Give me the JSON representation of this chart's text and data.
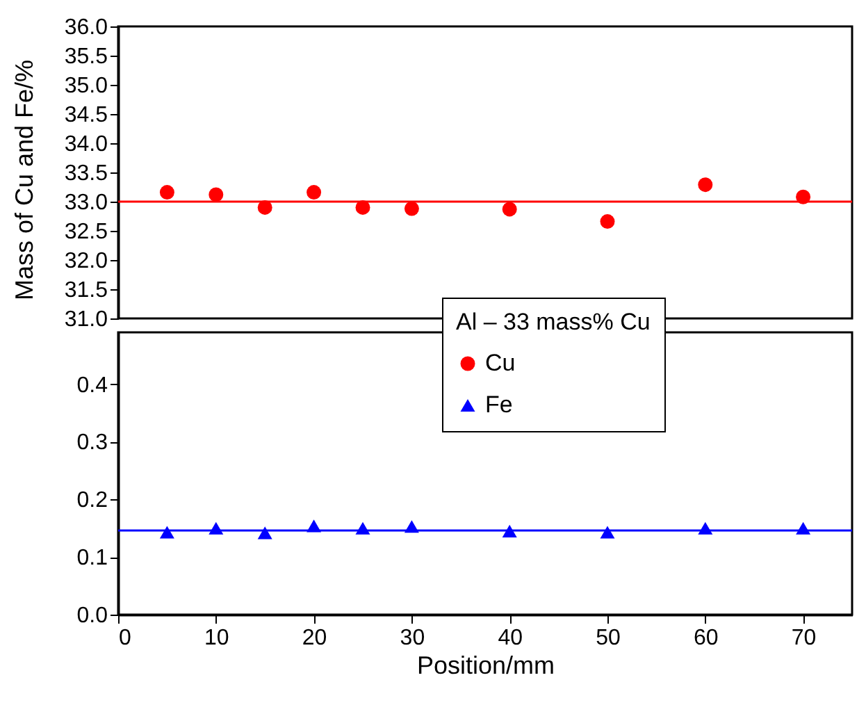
{
  "chart_data": [
    {
      "type": "scatter",
      "x": [
        5,
        10,
        15,
        20,
        25,
        30,
        40,
        50,
        60,
        70
      ],
      "xlim": [
        0,
        75
      ],
      "ylim": [
        31,
        36
      ],
      "yticks": [
        {
          "value": 31,
          "label": "31.0"
        },
        31.5,
        {
          "value": 32,
          "label": "32.0"
        },
        32.5,
        {
          "value": 33,
          "label": "33.0"
        },
        33.5,
        {
          "value": 34,
          "label": "34.0"
        },
        34.5,
        {
          "value": 35,
          "label": "35.0"
        },
        35.5,
        {
          "value": 36,
          "label": "36.0"
        }
      ],
      "tick_labels": "y",
      "marker": "circle",
      "series": [
        {
          "name": "Cu",
          "color": "#ff0000",
          "values": [
            33.16,
            33.12,
            32.9,
            33.16,
            32.9,
            32.88,
            32.87,
            32.66,
            33.29,
            33.08
          ]
        }
      ],
      "ref_lines": [
        {
          "axis": "y",
          "value": 33,
          "color": "#ff0000"
        }
      ]
    },
    {
      "type": "scatter",
      "x": [
        5,
        10,
        15,
        20,
        25,
        30,
        40,
        50,
        60,
        70
      ],
      "xlim": [
        0,
        75
      ],
      "xticks": [
        0,
        10,
        20,
        30,
        40,
        50,
        60,
        70
      ],
      "ylim": [
        0,
        0.49
      ],
      "yticks": [
        {
          "value": 0,
          "label": "0.0"
        },
        0.1,
        0.2,
        0.3,
        0.4
      ],
      "xlabel": "Position/mm",
      "ylabel": "Mass of Cu and Fe/%",
      "legend_title": "Al – 33 mass% Cu",
      "legend": "top right",
      "marker": "triangle",
      "series": [
        {
          "name": "Fe",
          "color": "#0000ff",
          "values": [
            0.143,
            0.15,
            0.142,
            0.154,
            0.15,
            0.153,
            0.145,
            0.143,
            0.15,
            0.15
          ]
        }
      ],
      "ref_lines": [
        {
          "axis": "y",
          "value": 0.146,
          "color": "#0000ff"
        }
      ]
    }
  ]
}
